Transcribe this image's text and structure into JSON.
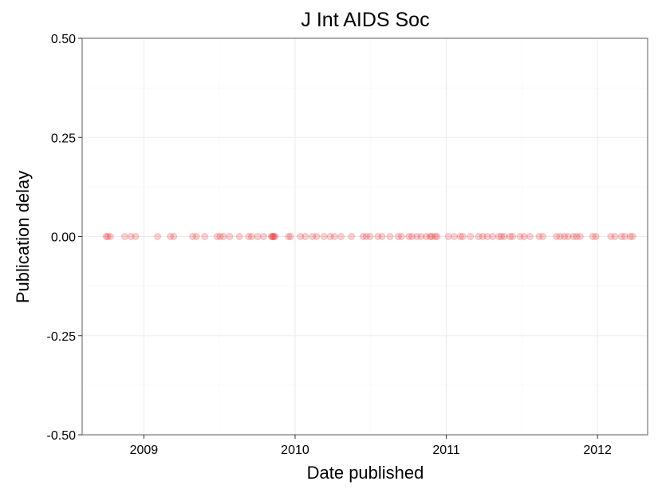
{
  "chart_data": {
    "type": "scatter",
    "title": "J Int AIDS Soc",
    "xlabel": "Date published",
    "ylabel": "Publication delay",
    "x_scale": "date",
    "xlim": [
      "2008-08-05",
      "2012-05-01"
    ],
    "ylim": [
      -0.5,
      0.5
    ],
    "x_ticks": [
      {
        "value": "2009-01-01",
        "label": "2009"
      },
      {
        "value": "2010-01-01",
        "label": "2010"
      },
      {
        "value": "2011-01-01",
        "label": "2011"
      },
      {
        "value": "2012-01-01",
        "label": "2012"
      }
    ],
    "y_ticks": [
      {
        "value": 0.5,
        "label": "0.50"
      },
      {
        "value": 0.25,
        "label": "0.25"
      },
      {
        "value": 0.0,
        "label": "0.00"
      },
      {
        "value": -0.25,
        "label": "-0.25"
      },
      {
        "value": -0.5,
        "label": "-0.50"
      }
    ],
    "grid": true,
    "point_color": "#e41a1c",
    "point_alpha": 0.2,
    "series": [
      {
        "x": [
          "2008-10-02",
          "2008-10-06",
          "2008-10-12",
          "2008-11-16",
          "2008-12-01",
          "2008-12-12",
          "2009-02-03",
          "2009-03-06",
          "2009-03-14",
          "2009-04-29",
          "2009-05-08",
          "2009-05-28",
          "2009-06-27",
          "2009-07-04",
          "2009-07-12",
          "2009-07-27",
          "2009-08-20",
          "2009-09-11",
          "2009-09-18",
          "2009-10-03",
          "2009-10-17",
          "2009-11-05",
          "2009-11-07",
          "2009-11-09",
          "2009-11-11",
          "2009-11-14",
          "2009-12-16",
          "2009-12-21",
          "2010-01-14",
          "2010-01-26",
          "2010-02-12",
          "2010-02-22",
          "2010-03-12",
          "2010-03-27",
          "2010-04-06",
          "2010-04-22",
          "2010-05-17",
          "2010-06-14",
          "2010-06-22",
          "2010-07-01",
          "2010-07-20",
          "2010-07-30",
          "2010-08-18",
          "2010-09-07",
          "2010-09-15",
          "2010-10-03",
          "2010-10-10",
          "2010-10-22",
          "2010-11-01",
          "2010-11-14",
          "2010-11-23",
          "2010-11-27",
          "2010-12-05",
          "2010-12-10",
          "2011-01-06",
          "2011-01-20",
          "2011-02-04",
          "2011-02-10",
          "2011-02-28",
          "2011-03-20",
          "2011-03-30",
          "2011-04-10",
          "2011-04-23",
          "2011-05-08",
          "2011-05-14",
          "2011-05-21",
          "2011-06-04",
          "2011-06-10",
          "2011-06-28",
          "2011-07-08",
          "2011-07-22",
          "2011-08-13",
          "2011-08-22",
          "2011-09-24",
          "2011-10-03",
          "2011-10-13",
          "2011-10-22",
          "2011-11-04",
          "2011-11-12",
          "2011-11-20",
          "2011-12-21",
          "2011-12-28",
          "2012-02-02",
          "2012-02-12",
          "2012-02-28",
          "2012-03-07",
          "2012-03-20",
          "2012-03-26"
        ],
        "y": [
          0,
          0,
          0,
          0,
          0,
          0,
          0,
          0,
          0,
          0,
          0,
          0,
          0,
          0,
          0,
          0,
          0,
          0,
          0,
          0,
          0,
          0,
          0,
          0,
          0,
          0,
          0,
          0,
          0,
          0,
          0,
          0,
          0,
          0,
          0,
          0,
          0,
          0,
          0,
          0,
          0,
          0,
          0,
          0,
          0,
          0,
          0,
          0,
          0,
          0,
          0,
          0,
          0,
          0,
          0,
          0,
          0,
          0,
          0,
          0,
          0,
          0,
          0,
          0,
          0,
          0,
          0,
          0,
          0,
          0,
          0,
          0,
          0,
          0,
          0,
          0,
          0,
          0,
          0,
          0,
          0,
          0,
          0,
          0,
          0,
          0,
          0,
          0
        ]
      }
    ]
  }
}
